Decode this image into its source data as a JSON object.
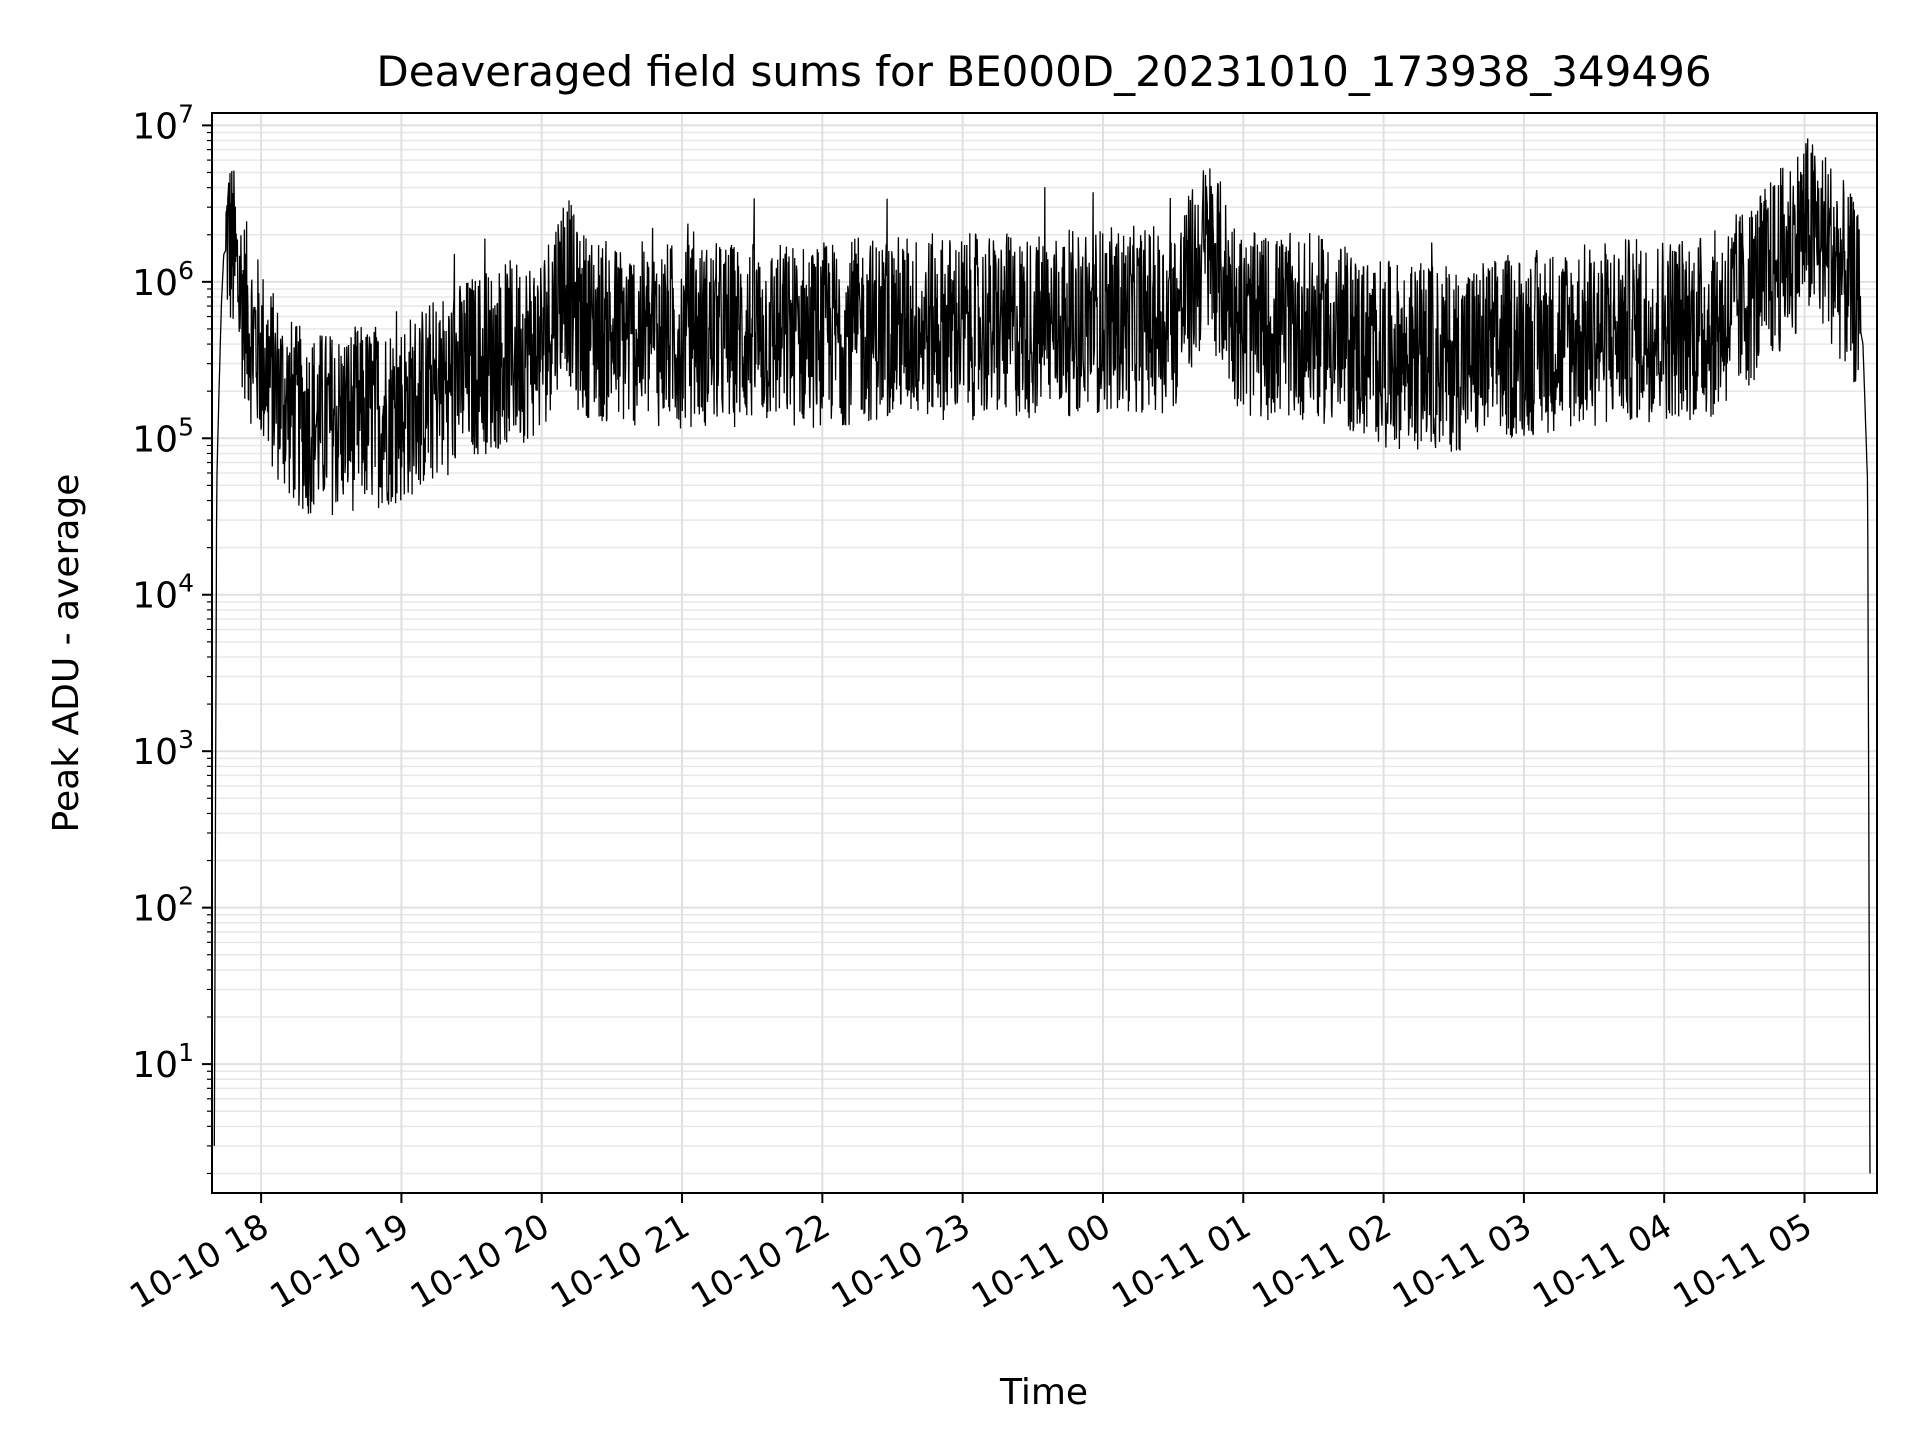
{
  "chart_data": {
    "type": "line",
    "title": "Deaveraged field sums for BE000D_20231010_173938_349496",
    "xlabel": "Time",
    "ylabel": "Peak ADU - average",
    "yscale": "log",
    "ylim": [
      1.5,
      12000000
    ],
    "xlim": [
      "2023-10-10 17:39",
      "2023-10-11 05:31"
    ],
    "grid": true,
    "grid_minor": true,
    "legend": "none",
    "line_color": "#000000",
    "x_ticks": [
      "2023-10-10 18:00",
      "2023-10-10 19:00",
      "2023-10-10 20:00",
      "2023-10-10 21:00",
      "2023-10-10 22:00",
      "2023-10-10 23:00",
      "2023-10-11 00:00",
      "2023-10-11 01:00",
      "2023-10-11 02:00",
      "2023-10-11 03:00",
      "2023-10-11 04:00",
      "2023-10-11 05:00"
    ],
    "x_tick_labels": [
      "10-10 18",
      "10-10 19",
      "10-10 20",
      "10-10 21",
      "10-10 22",
      "10-10 23",
      "10-11 00",
      "10-11 01",
      "10-11 02",
      "10-11 03",
      "10-11 04",
      "10-11 05"
    ],
    "y_ticks": [
      10,
      100,
      1000,
      10000,
      100000,
      1000000,
      10000000
    ],
    "y_tick_labels": [
      {
        "base": "10",
        "exp": "1"
      },
      {
        "base": "10",
        "exp": "2"
      },
      {
        "base": "10",
        "exp": "3"
      },
      {
        "base": "10",
        "exp": "4"
      },
      {
        "base": "10",
        "exp": "5"
      },
      {
        "base": "10",
        "exp": "6"
      },
      {
        "base": "10",
        "exp": "7"
      }
    ],
    "series": [
      {
        "x": [
          "2023-10-10 17:40",
          "2023-10-10 17:41",
          "2023-10-10 17:42",
          "2023-10-10 17:43",
          "2023-10-10 17:44",
          "2023-10-10 17:46",
          "2023-10-10 17:48",
          "2023-10-10 17:50",
          "2023-10-10 17:53",
          "2023-10-10 17:56",
          "2023-10-10 18:00",
          "2023-10-10 18:05",
          "2023-10-10 18:10",
          "2023-10-10 18:15",
          "2023-10-10 18:20",
          "2023-10-10 18:30",
          "2023-10-10 18:45",
          "2023-10-10 19:00",
          "2023-10-10 19:15",
          "2023-10-10 19:30",
          "2023-10-10 19:45",
          "2023-10-10 20:00",
          "2023-10-10 20:10",
          "2023-10-10 20:15",
          "2023-10-10 20:30",
          "2023-10-10 21:00",
          "2023-10-10 21:30",
          "2023-10-10 22:00",
          "2023-10-10 22:30",
          "2023-10-10 23:00",
          "2023-10-10 23:30",
          "2023-10-11 00:00",
          "2023-10-11 00:30",
          "2023-10-11 00:45",
          "2023-10-11 01:00",
          "2023-10-11 01:30",
          "2023-10-11 02:00",
          "2023-10-11 02:30",
          "2023-10-11 03:00",
          "2023-10-11 03:30",
          "2023-10-11 04:00",
          "2023-10-11 04:20",
          "2023-10-11 04:40",
          "2023-10-11 04:55",
          "2023-10-11 05:00",
          "2023-10-11 05:10",
          "2023-10-11 05:18",
          "2023-10-11 05:22",
          "2023-10-11 05:25",
          "2023-10-11 05:27",
          "2023-10-11 05:28"
        ],
        "values": [
          3,
          50000,
          200000,
          700000,
          1500000,
          1700000,
          1300000,
          900000,
          600000,
          400000,
          300000,
          200000,
          150000,
          120000,
          110000,
          110000,
          120000,
          130000,
          180000,
          250000,
          300000,
          350000,
          1000000,
          500000,
          400000,
          400000,
          400000,
          400000,
          450000,
          450000,
          450000,
          500000,
          500000,
          1500000,
          450000,
          450000,
          300000,
          280000,
          350000,
          400000,
          450000,
          450000,
          800000,
          1500000,
          2000000,
          1500000,
          900000,
          700000,
          400000,
          50000,
          2
        ]
      }
    ]
  }
}
